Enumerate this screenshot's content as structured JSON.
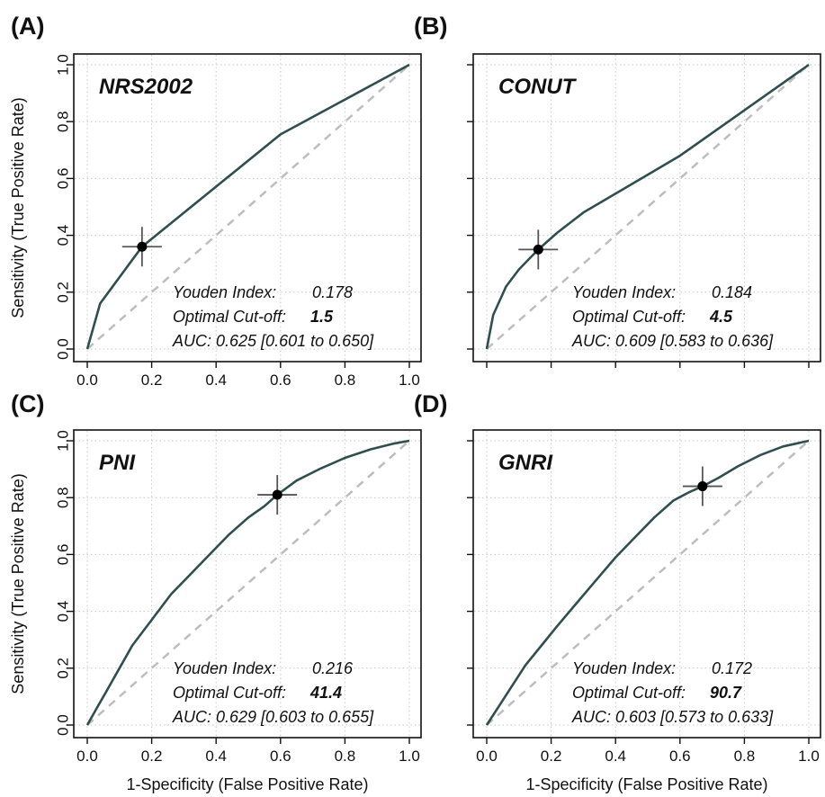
{
  "chart_data": [
    {
      "type": "line",
      "panel_label": "(A)",
      "name_label": "NRS2002",
      "xlabel": "",
      "ylabel": "Sensitivity (True Positive Rate)",
      "xlim": [
        0,
        1
      ],
      "ylim": [
        0,
        1
      ],
      "grid": true,
      "x_ticks": [
        "0.0",
        "0.2",
        "0.4",
        "0.6",
        "0.8",
        "1.0"
      ],
      "y_ticks": [
        "0.0",
        "0.2",
        "0.4",
        "0.6",
        "0.8",
        "1.0"
      ],
      "roc": {
        "x": [
          0.0,
          0.04,
          0.17,
          0.6,
          1.0
        ],
        "y": [
          0.0,
          0.16,
          0.36,
          0.755,
          1.0
        ]
      },
      "cutoff_point": {
        "x": 0.17,
        "y": 0.36
      },
      "annotations": {
        "youden_label": "Youden Index:",
        "youden_value": "0.178",
        "cutoff_label": "Optimal Cut-off:",
        "cutoff_value": "1.5",
        "auc_text": "AUC: 0.625 [0.601 to 0.650]"
      },
      "colors": {
        "roc": "#2f4f4f",
        "reference": "#bdbdbd",
        "marker": "#000000"
      }
    },
    {
      "type": "line",
      "panel_label": "(B)",
      "name_label": "CONUT",
      "xlabel": "",
      "ylabel": "",
      "xlim": [
        0,
        1
      ],
      "ylim": [
        0,
        1
      ],
      "grid": true,
      "x_ticks": [
        "",
        "",
        "",
        "",
        "",
        ""
      ],
      "y_ticks": [
        "",
        "",
        "",
        "",
        "",
        ""
      ],
      "roc": {
        "x": [
          0.0,
          0.02,
          0.06,
          0.1,
          0.16,
          0.22,
          0.3,
          0.45,
          0.6,
          0.8,
          1.0
        ],
        "y": [
          0.0,
          0.12,
          0.22,
          0.28,
          0.35,
          0.41,
          0.48,
          0.58,
          0.68,
          0.84,
          1.0
        ]
      },
      "cutoff_point": {
        "x": 0.16,
        "y": 0.35
      },
      "annotations": {
        "youden_label": "Youden Index:",
        "youden_value": "0.184",
        "cutoff_label": "Optimal Cut-off:",
        "cutoff_value": "4.5",
        "auc_text": "AUC: 0.609 [0.583 to 0.636]"
      },
      "colors": {
        "roc": "#2f4f4f",
        "reference": "#bdbdbd",
        "marker": "#000000"
      }
    },
    {
      "type": "line",
      "panel_label": "(C)",
      "name_label": "PNI",
      "xlabel": "1-Specificity (False Positive Rate)",
      "ylabel": "Sensitivity (True Positive Rate)",
      "xlim": [
        0,
        1
      ],
      "ylim": [
        0,
        1
      ],
      "grid": true,
      "x_ticks": [
        "0.0",
        "0.2",
        "0.4",
        "0.6",
        "0.8",
        "1.0"
      ],
      "y_ticks": [
        "0.0",
        "0.2",
        "0.4",
        "0.6",
        "0.8",
        "1.0"
      ],
      "roc": {
        "x": [
          0.0,
          0.03,
          0.06,
          0.1,
          0.14,
          0.2,
          0.26,
          0.32,
          0.38,
          0.44,
          0.5,
          0.55,
          0.59,
          0.65,
          0.72,
          0.8,
          0.88,
          0.95,
          1.0
        ],
        "y": [
          0.0,
          0.06,
          0.12,
          0.2,
          0.28,
          0.37,
          0.46,
          0.53,
          0.6,
          0.67,
          0.73,
          0.77,
          0.81,
          0.86,
          0.9,
          0.94,
          0.97,
          0.99,
          1.0
        ]
      },
      "cutoff_point": {
        "x": 0.59,
        "y": 0.81
      },
      "annotations": {
        "youden_label": "Youden Index:",
        "youden_value": "0.216",
        "cutoff_label": "Optimal Cut-off:",
        "cutoff_value": "41.4",
        "auc_text": "AUC: 0.629 [0.603 to 0.655]"
      },
      "colors": {
        "roc": "#2f4f4f",
        "reference": "#bdbdbd",
        "marker": "#000000"
      }
    },
    {
      "type": "line",
      "panel_label": "(D)",
      "name_label": "GNRI",
      "xlabel": "1-Specificity (False Positive Rate)",
      "ylabel": "",
      "xlim": [
        0,
        1
      ],
      "ylim": [
        0,
        1
      ],
      "grid": true,
      "x_ticks": [
        "0.0",
        "0.2",
        "0.4",
        "0.6",
        "0.8",
        "1.0"
      ],
      "y_ticks": [
        "",
        "",
        "",
        "",
        "",
        ""
      ],
      "roc": {
        "x": [
          0.0,
          0.04,
          0.08,
          0.12,
          0.17,
          0.22,
          0.28,
          0.34,
          0.4,
          0.46,
          0.52,
          0.58,
          0.63,
          0.67,
          0.72,
          0.78,
          0.85,
          0.92,
          1.0
        ],
        "y": [
          0.0,
          0.07,
          0.14,
          0.21,
          0.28,
          0.35,
          0.43,
          0.51,
          0.59,
          0.66,
          0.73,
          0.79,
          0.82,
          0.84,
          0.87,
          0.91,
          0.95,
          0.98,
          1.0
        ]
      },
      "cutoff_point": {
        "x": 0.67,
        "y": 0.84
      },
      "annotations": {
        "youden_label": "Youden Index:",
        "youden_value": "0.172",
        "cutoff_label": "Optimal Cut-off:",
        "cutoff_value": "90.7",
        "auc_text": "AUC: 0.603 [0.573 to 0.633]"
      },
      "colors": {
        "roc": "#2f4f4f",
        "reference": "#bdbdbd",
        "marker": "#000000"
      }
    }
  ]
}
